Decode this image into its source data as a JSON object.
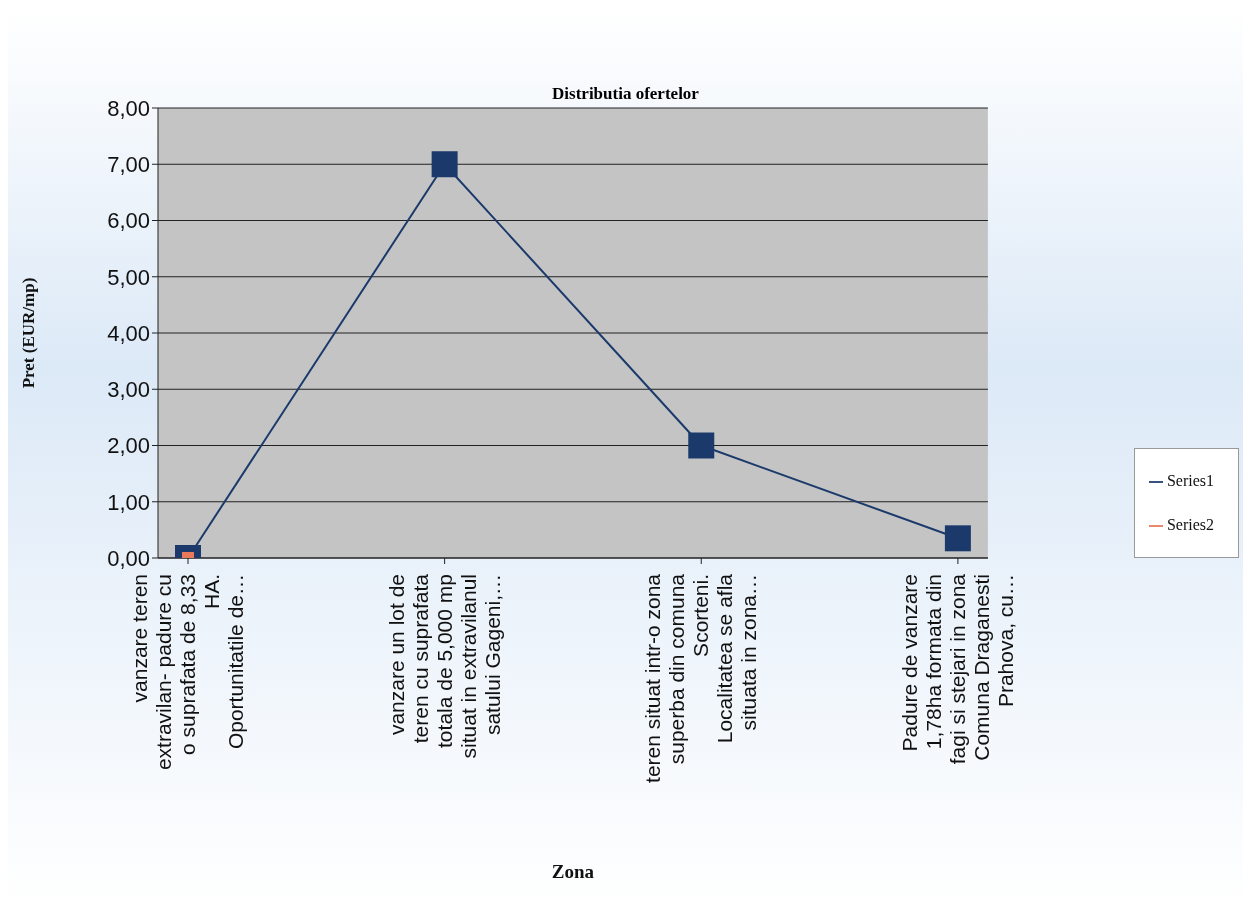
{
  "chart_data": {
    "type": "line",
    "title": "Distributia ofertelor",
    "xlabel": "Zona",
    "ylabel": "Pret (EUR/mp)",
    "categories": [
      "vanzare teren\nextravilan- padure cu\no suprafata de 8,33\nHA.\nOportunitatile de…",
      "vanzare un lot de\nteren cu suprafata\ntotala de 5,000 mp\nsituat in extravilanul\nsatului Gageni,…",
      "teren situat intr-o zona\nsuperba din comuna\nScorteni.\nLocalitatea se afla\nsituata in zona…",
      "Padure de vanzare\n1,78ha formata din\nfagi si stejari in zona\nComuna Draganesti\nPrahova, cu…"
    ],
    "series": [
      {
        "name": "Series1",
        "color": "#1b3a6b",
        "values": [
          0,
          7,
          2,
          0.35
        ]
      },
      {
        "name": "Series2",
        "color": "#e8795a",
        "values": [
          0,
          null,
          null,
          null
        ]
      }
    ],
    "ylim": [
      0,
      8
    ],
    "yticks": [
      {
        "value": 0,
        "label": "0,00"
      },
      {
        "value": 1,
        "label": "1,00"
      },
      {
        "value": 2,
        "label": "2,00"
      },
      {
        "value": 3,
        "label": "3,00"
      },
      {
        "value": 4,
        "label": "4,00"
      },
      {
        "value": 5,
        "label": "5,00"
      },
      {
        "value": 6,
        "label": "6,00"
      },
      {
        "value": 7,
        "label": "7,00"
      },
      {
        "value": 8,
        "label": "8,00"
      }
    ],
    "grid": "y",
    "legend": "right",
    "marker": "square"
  }
}
